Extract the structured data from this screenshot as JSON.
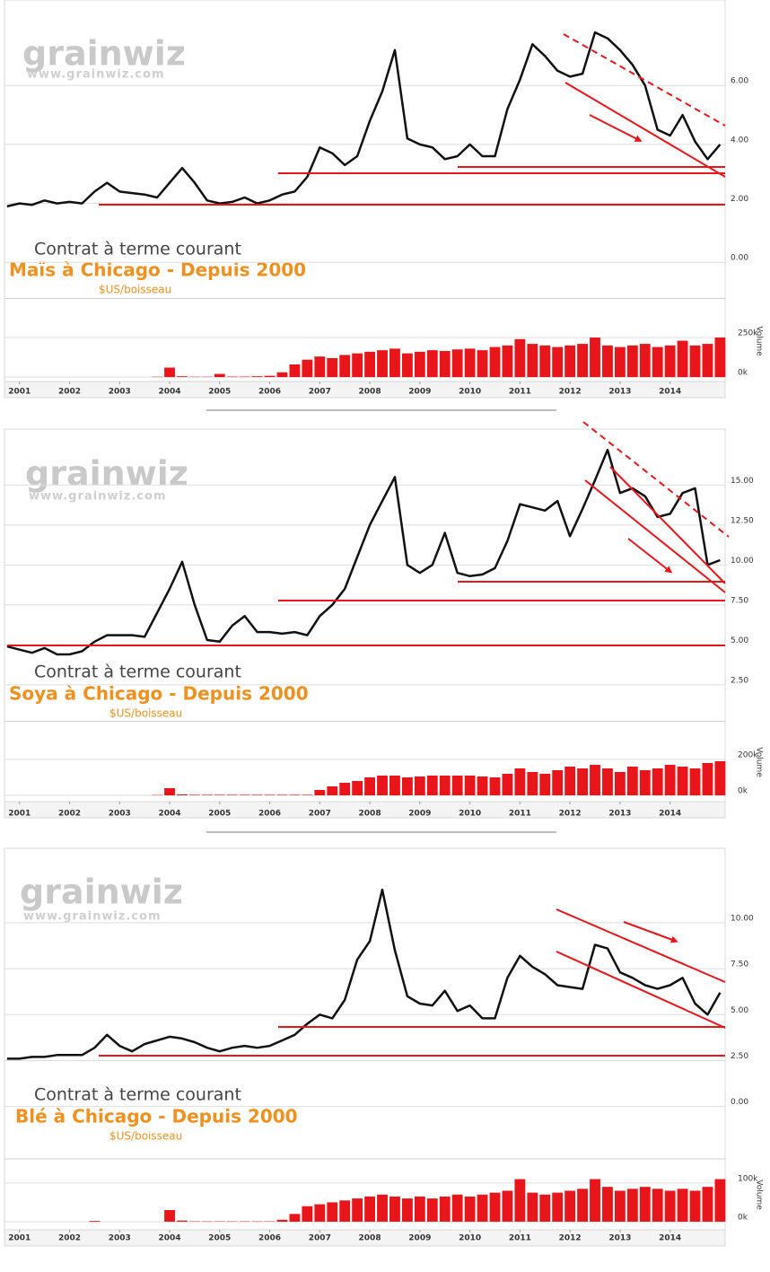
{
  "chart_data": [
    {
      "type": "line",
      "title": "Contrat à terme courant",
      "subtitle": "Maïs à Chicago - Depuis 2000",
      "unit": "$US/boisseau",
      "watermark": "grainwiz",
      "watermark_url": "www.grainwiz.com",
      "color": "#111111",
      "x": [
        2000.75,
        2001,
        2001.25,
        2001.5,
        2001.75,
        2002,
        2002.25,
        2002.5,
        2002.75,
        2003,
        2003.25,
        2003.5,
        2003.75,
        2004,
        2004.25,
        2004.5,
        2004.75,
        2005,
        2005.25,
        2005.5,
        2005.75,
        2006,
        2006.25,
        2006.5,
        2006.75,
        2007,
        2007.25,
        2007.5,
        2007.75,
        2008,
        2008.25,
        2008.5,
        2008.75,
        2009,
        2009.25,
        2009.5,
        2009.75,
        2010,
        2010.25,
        2010.5,
        2010.75,
        2011,
        2011.25,
        2011.5,
        2011.75,
        2012,
        2012.25,
        2012.5,
        2012.75,
        2013,
        2013.25,
        2013.5,
        2013.75,
        2014,
        2014.25,
        2014.5,
        2014.75,
        2015
      ],
      "values": [
        1.9,
        2.0,
        1.95,
        2.1,
        2.0,
        2.05,
        2.0,
        2.4,
        2.7,
        2.4,
        2.35,
        2.3,
        2.2,
        2.7,
        3.2,
        2.7,
        2.1,
        2.0,
        2.05,
        2.2,
        2.0,
        2.1,
        2.3,
        2.4,
        2.9,
        3.9,
        3.7,
        3.3,
        3.6,
        4.8,
        5.8,
        7.2,
        4.2,
        4.0,
        3.9,
        3.5,
        3.6,
        4.0,
        3.6,
        3.6,
        5.2,
        6.2,
        7.4,
        7.0,
        6.5,
        6.3,
        6.4,
        7.8,
        7.6,
        7.2,
        6.7,
        6.0,
        4.5,
        4.3,
        5.0,
        4.1,
        3.5,
        4.0
      ],
      "xlim": [
        2000.7,
        2015.1
      ],
      "xticks": [
        2001,
        2002,
        2003,
        2004,
        2005,
        2006,
        2007,
        2008,
        2009,
        2010,
        2011,
        2012,
        2013,
        2014
      ],
      "ylim": [
        -1.15,
        8.9
      ],
      "yticks": [
        {
          "value": 0,
          "label": "0.00"
        },
        {
          "value": 2,
          "label": "2.00"
        },
        {
          "value": 4,
          "label": "4.00"
        },
        {
          "value": 6,
          "label": "6.00"
        }
      ],
      "volume": {
        "label": "Volume",
        "color": "#e8161b",
        "ylim": [
          -28000,
          483000
        ],
        "yticks": [
          {
            "value": 0,
            "label": "0k"
          },
          {
            "value": 250000,
            "label": "250k"
          }
        ],
        "values": [
          0,
          0,
          0,
          0,
          0,
          0,
          0,
          0,
          0,
          0,
          0,
          0,
          2000,
          60000,
          5000,
          2000,
          2000,
          20000,
          3000,
          3000,
          5000,
          8000,
          30000,
          80000,
          110000,
          130000,
          120000,
          140000,
          150000,
          160000,
          170000,
          180000,
          150000,
          160000,
          170000,
          165000,
          175000,
          180000,
          170000,
          190000,
          200000,
          240000,
          210000,
          200000,
          190000,
          200000,
          210000,
          250000,
          200000,
          190000,
          200000,
          210000,
          190000,
          200000,
          230000,
          200000,
          210000,
          250000
        ]
      }
    },
    {
      "type": "line",
      "title": "Contrat à terme courant",
      "subtitle": "Soya à Chicago - Depuis 2000",
      "unit": "$US/boisseau",
      "watermark": "grainwiz",
      "watermark_url": "www.grainwiz.com",
      "color": "#111111",
      "x": [
        2000.75,
        2001,
        2001.25,
        2001.5,
        2001.75,
        2002,
        2002.25,
        2002.5,
        2002.75,
        2003,
        2003.25,
        2003.5,
        2003.75,
        2004,
        2004.25,
        2004.5,
        2004.75,
        2005,
        2005.25,
        2005.5,
        2005.75,
        2006,
        2006.25,
        2006.5,
        2006.75,
        2007,
        2007.25,
        2007.5,
        2007.75,
        2008,
        2008.25,
        2008.5,
        2008.75,
        2009,
        2009.25,
        2009.5,
        2009.75,
        2010,
        2010.25,
        2010.5,
        2010.75,
        2011,
        2011.25,
        2011.5,
        2011.75,
        2012,
        2012.25,
        2012.5,
        2012.75,
        2013,
        2013.25,
        2013.5,
        2013.75,
        2014,
        2014.25,
        2014.5,
        2014.75,
        2015
      ],
      "values": [
        4.9,
        4.7,
        4.5,
        4.8,
        4.4,
        4.4,
        4.6,
        5.2,
        5.6,
        5.6,
        5.6,
        5.5,
        7.0,
        8.5,
        10.2,
        7.5,
        5.3,
        5.2,
        6.2,
        6.8,
        5.8,
        5.8,
        5.7,
        5.8,
        5.6,
        6.8,
        7.5,
        8.5,
        10.5,
        12.5,
        14.0,
        15.5,
        10.0,
        9.5,
        10.0,
        12.0,
        9.5,
        9.3,
        9.4,
        9.8,
        11.5,
        13.8,
        13.6,
        13.4,
        14.0,
        11.8,
        13.5,
        15.3,
        17.2,
        14.5,
        14.8,
        14.3,
        13.0,
        13.2,
        14.5,
        14.8,
        10.0,
        10.3
      ],
      "xlim": [
        2000.7,
        2015.1
      ],
      "xticks": [
        2001,
        2002,
        2003,
        2004,
        2005,
        2006,
        2007,
        2008,
        2009,
        2010,
        2011,
        2012,
        2013,
        2014
      ],
      "ylim": [
        0.3,
        18.5
      ],
      "yticks": [
        {
          "value": 2.5,
          "label": "2.50"
        },
        {
          "value": 5,
          "label": "5.00"
        },
        {
          "value": 7.5,
          "label": "7.50"
        },
        {
          "value": 10,
          "label": "10.00"
        },
        {
          "value": 12.5,
          "label": "12.50"
        },
        {
          "value": 15,
          "label": "15.00"
        }
      ],
      "volume": {
        "label": "Volume",
        "color": "#e8161b",
        "ylim": [
          -35000,
          405000
        ],
        "yticks": [
          {
            "value": 0,
            "label": "0k"
          },
          {
            "value": 200000,
            "label": "200k"
          }
        ],
        "values": [
          0,
          0,
          0,
          0,
          0,
          0,
          0,
          0,
          0,
          0,
          0,
          0,
          2000,
          40000,
          5000,
          3000,
          3000,
          3000,
          3000,
          3000,
          3000,
          3000,
          3000,
          3000,
          3000,
          30000,
          50000,
          70000,
          80000,
          100000,
          110000,
          110000,
          100000,
          105000,
          110000,
          110000,
          110000,
          110000,
          105000,
          100000,
          120000,
          150000,
          130000,
          120000,
          140000,
          160000,
          150000,
          170000,
          150000,
          130000,
          160000,
          140000,
          150000,
          170000,
          160000,
          150000,
          180000,
          190000
        ]
      }
    },
    {
      "type": "line",
      "title": "Contrat à terme courant",
      "subtitle": "Blé à Chicago - Depuis 2000",
      "unit": "$US/boisseau",
      "watermark": "grainwiz",
      "watermark_url": "www.grainwiz.com",
      "color": "#111111",
      "x": [
        2000.75,
        2001,
        2001.25,
        2001.5,
        2001.75,
        2002,
        2002.25,
        2002.5,
        2002.75,
        2003,
        2003.25,
        2003.5,
        2003.75,
        2004,
        2004.25,
        2004.5,
        2004.75,
        2005,
        2005.25,
        2005.5,
        2005.75,
        2006,
        2006.25,
        2006.5,
        2006.75,
        2007,
        2007.25,
        2007.5,
        2007.75,
        2008,
        2008.25,
        2008.5,
        2008.75,
        2009,
        2009.25,
        2009.5,
        2009.75,
        2010,
        2010.25,
        2010.5,
        2010.75,
        2011,
        2011.25,
        2011.5,
        2011.75,
        2012,
        2012.25,
        2012.5,
        2012.75,
        2013,
        2013.25,
        2013.5,
        2013.75,
        2014,
        2014.25,
        2014.5,
        2014.75,
        2015
      ],
      "values": [
        2.6,
        2.6,
        2.7,
        2.7,
        2.8,
        2.8,
        2.8,
        3.2,
        3.9,
        3.3,
        3.0,
        3.4,
        3.6,
        3.8,
        3.7,
        3.5,
        3.2,
        3.0,
        3.2,
        3.3,
        3.2,
        3.3,
        3.6,
        3.9,
        4.5,
        5.0,
        4.8,
        5.8,
        8.0,
        9.0,
        11.8,
        8.5,
        6.0,
        5.6,
        5.5,
        6.3,
        5.2,
        5.5,
        4.8,
        4.8,
        7.0,
        8.2,
        7.6,
        7.2,
        6.6,
        6.5,
        6.4,
        8.8,
        8.6,
        7.3,
        7.0,
        6.6,
        6.4,
        6.6,
        7.0,
        5.6,
        5.0,
        6.2
      ],
      "xlim": [
        2000.7,
        2015.1
      ],
      "xticks": [
        2001,
        2002,
        2003,
        2004,
        2005,
        2006,
        2007,
        2008,
        2009,
        2010,
        2011,
        2012,
        2013,
        2014
      ],
      "ylim": [
        -2.8,
        14.05
      ],
      "yticks": [
        {
          "value": 0,
          "label": "0.00"
        },
        {
          "value": 2.5,
          "label": "2.50"
        },
        {
          "value": 5,
          "label": "5.00"
        },
        {
          "value": 7.5,
          "label": "7.50"
        },
        {
          "value": 10,
          "label": "10.00"
        }
      ],
      "volume": {
        "label": "Volume",
        "color": "#e8161b",
        "ylim": [
          -21000,
          160000
        ],
        "yticks": [
          {
            "value": 0,
            "label": "0k"
          },
          {
            "value": 100000,
            "label": "100k"
          }
        ],
        "values": [
          0,
          0,
          0,
          0,
          0,
          0,
          0,
          2000,
          0,
          0,
          0,
          0,
          0,
          30000,
          3000,
          1000,
          1000,
          1000,
          1000,
          1000,
          1000,
          1000,
          5000,
          20000,
          40000,
          45000,
          50000,
          55000,
          60000,
          65000,
          70000,
          65000,
          60000,
          65000,
          60000,
          65000,
          70000,
          65000,
          70000,
          75000,
          80000,
          110000,
          75000,
          70000,
          75000,
          80000,
          85000,
          110000,
          90000,
          80000,
          85000,
          90000,
          85000,
          80000,
          85000,
          80000,
          90000,
          110000
        ]
      }
    }
  ]
}
